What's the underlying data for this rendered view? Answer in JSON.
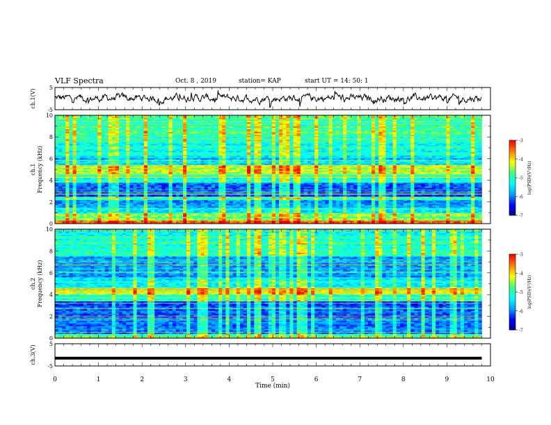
{
  "header": {
    "title": "VLF Spectra",
    "date": "Oct. 8 , 2019",
    "station": "station= KAP",
    "start": "start UT = 14: 50: 1"
  },
  "chart_data": [
    {
      "type": "line",
      "panel": "ch1-waveform",
      "ylabel": "ch.1(V)",
      "ylim": [
        -5,
        5
      ],
      "yticks": [
        "5",
        "-5"
      ],
      "xlim": [
        0,
        10
      ],
      "data_end_min": 9.8,
      "description_values": {
        "mean": 0.2,
        "amplitude_range": [
          -4,
          4
        ]
      }
    },
    {
      "type": "heatmap",
      "panel": "ch1-spectrogram",
      "ylabel": "ch.1 Frequency (kHz)",
      "ylabel_lines": [
        "ch.1",
        "Frequency (kHz)"
      ],
      "ylim": [
        0,
        10
      ],
      "yticks": [
        "0",
        "2",
        "4",
        "6",
        "8",
        "10"
      ],
      "xlim": [
        0,
        10
      ],
      "data_end_min": 9.8,
      "colorbar": {
        "label": "log(PSD)(V²/Hz)",
        "ticks": [
          "-3",
          "-4",
          "-5",
          "-6",
          "-7"
        ],
        "range": [
          -7,
          -3
        ]
      },
      "bands_khz": [
        {
          "f": [
            0.0,
            0.3
          ],
          "level": -3.6
        },
        {
          "f": [
            0.3,
            1.0
          ],
          "level": -4.6
        },
        {
          "f": [
            1.0,
            1.5
          ],
          "level": -5.3
        },
        {
          "f": [
            1.5,
            2.2
          ],
          "level": -5.8
        },
        {
          "f": [
            2.2,
            2.5
          ],
          "level": -4.9
        },
        {
          "f": [
            2.5,
            3.8
          ],
          "level": -6.1
        },
        {
          "f": [
            3.8,
            4.6
          ],
          "level": -5.1
        },
        {
          "f": [
            4.6,
            5.4
          ],
          "level": -4.4
        },
        {
          "f": [
            5.4,
            6.3
          ],
          "level": -5.6
        },
        {
          "f": [
            6.3,
            8.0
          ],
          "level": -5.2
        },
        {
          "f": [
            8.0,
            10.0
          ],
          "level": -4.9
        }
      ]
    },
    {
      "type": "heatmap",
      "panel": "ch2-spectrogram",
      "ylabel": "ch.2 Frequency (kHz)",
      "ylabel_lines": [
        "ch.2",
        "Frequency (kHz)"
      ],
      "ylim": [
        0,
        10
      ],
      "yticks": [
        "0",
        "2",
        "4",
        "6",
        "8",
        "10"
      ],
      "xlim": [
        0,
        10
      ],
      "data_end_min": 9.8,
      "colorbar": {
        "label": "log(PSD)(V²/Hz)",
        "ticks": [
          "-3",
          "-4",
          "-5",
          "-6",
          "-7"
        ],
        "range": [
          -7,
          -3
        ]
      },
      "bands_khz": [
        {
          "f": [
            0.0,
            0.4
          ],
          "level": -4.8
        },
        {
          "f": [
            0.4,
            2.0
          ],
          "level": -5.9
        },
        {
          "f": [
            2.0,
            3.4
          ],
          "level": -6.2
        },
        {
          "f": [
            3.4,
            4.0
          ],
          "level": -5.0
        },
        {
          "f": [
            4.0,
            4.6
          ],
          "level": -4.1
        },
        {
          "f": [
            4.6,
            5.6
          ],
          "level": -5.3
        },
        {
          "f": [
            5.6,
            7.5
          ],
          "level": -5.8
        },
        {
          "f": [
            7.5,
            10.0
          ],
          "level": -5.1
        }
      ]
    },
    {
      "type": "line",
      "panel": "ch3-waveform",
      "ylabel": "ch.3(V)",
      "ylim": [
        -5,
        5
      ],
      "yticks": [
        "5",
        "-5"
      ],
      "xlim": [
        0,
        10
      ],
      "data_end_min": 9.8,
      "constant_value": -1.5
    }
  ],
  "x_axis": {
    "label": "Time (min)",
    "ticks": [
      "0",
      "1",
      "2",
      "3",
      "4",
      "5",
      "6",
      "7",
      "8",
      "9",
      "10"
    ]
  },
  "colors": {
    "colormap": [
      "#000080",
      "#0000ff",
      "#00a0ff",
      "#00ffff",
      "#40ff80",
      "#ffff00",
      "#ff8000",
      "#ff0000",
      "#ffffff"
    ],
    "trace": "#000000"
  }
}
